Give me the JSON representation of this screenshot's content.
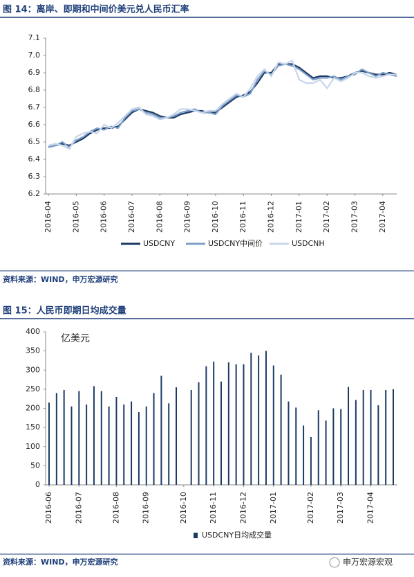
{
  "chart_data": [
    {
      "type": "line",
      "title": "图 14：离岸、即期和中间价美元兑人民币汇率",
      "categories": [
        "2016-04",
        null,
        null,
        null,
        "2016-05",
        null,
        null,
        null,
        "2016-06",
        null,
        null,
        null,
        "2016-07",
        null,
        null,
        null,
        "2016-08",
        null,
        null,
        null,
        "2016-09",
        null,
        null,
        null,
        "2016-10",
        null,
        null,
        null,
        "2016-11",
        null,
        null,
        null,
        "2016-12",
        null,
        null,
        null,
        "2017-01",
        null,
        null,
        null,
        "2017-02",
        null,
        null,
        null,
        "2017-03",
        null,
        null,
        null,
        "2017-04",
        null,
        null
      ],
      "series": [
        {
          "name": "USDCNY",
          "color": "#1c3a64",
          "values": [
            6.47,
            6.48,
            6.49,
            6.48,
            6.5,
            6.52,
            6.55,
            6.57,
            6.58,
            6.58,
            6.59,
            6.63,
            6.67,
            6.69,
            6.68,
            6.67,
            6.65,
            6.64,
            6.64,
            6.66,
            6.67,
            6.68,
            6.68,
            6.67,
            6.67,
            6.7,
            6.73,
            6.76,
            6.77,
            6.79,
            6.84,
            6.9,
            6.9,
            6.95,
            6.95,
            6.95,
            6.93,
            6.9,
            6.87,
            6.88,
            6.88,
            6.87,
            6.87,
            6.88,
            6.9,
            6.91,
            6.9,
            6.89,
            6.89,
            6.9,
            6.89
          ]
        },
        {
          "name": "USDCNY中间价",
          "color": "#7f9fc8",
          "values": [
            6.47,
            6.48,
            6.5,
            6.47,
            6.51,
            6.53,
            6.56,
            6.58,
            6.57,
            6.59,
            6.58,
            6.64,
            6.68,
            6.69,
            6.67,
            6.66,
            6.64,
            6.64,
            6.65,
            6.67,
            6.68,
            6.69,
            6.67,
            6.67,
            6.66,
            6.71,
            6.74,
            6.77,
            6.76,
            6.78,
            6.86,
            6.91,
            6.89,
            6.94,
            6.95,
            6.94,
            6.92,
            6.89,
            6.86,
            6.87,
            6.87,
            6.88,
            6.86,
            6.88,
            6.89,
            6.92,
            6.9,
            6.88,
            6.9,
            6.89,
            6.88
          ]
        },
        {
          "name": "USDCNH",
          "color": "#c6d6eb",
          "values": [
            6.48,
            6.49,
            6.48,
            6.46,
            6.53,
            6.55,
            6.56,
            6.55,
            6.6,
            6.58,
            6.61,
            6.65,
            6.69,
            6.7,
            6.66,
            6.65,
            6.63,
            6.64,
            6.66,
            6.69,
            6.69,
            6.68,
            6.67,
            6.68,
            6.68,
            6.72,
            6.75,
            6.78,
            6.76,
            6.81,
            6.88,
            6.92,
            6.88,
            6.96,
            6.95,
            6.97,
            6.86,
            6.84,
            6.84,
            6.86,
            6.81,
            6.87,
            6.85,
            6.87,
            6.9,
            6.9,
            6.88,
            6.87,
            6.88,
            6.89,
            6.89
          ]
        }
      ],
      "ylim": [
        6.2,
        7.1
      ],
      "yticks": [
        6.2,
        6.3,
        6.4,
        6.5,
        6.6,
        6.7,
        6.8,
        6.9,
        {
          "value": 7,
          "label": "7.0"
        },
        7.1
      ]
    },
    {
      "type": "bar",
      "title": "图 15：人民币即期日均成交量",
      "y_label": "亿美元",
      "categories": [
        "2016-06",
        null,
        null,
        null,
        "2016-07",
        null,
        null,
        null,
        null,
        "2016-08",
        null,
        null,
        null,
        "2016-09",
        null,
        null,
        null,
        null,
        "2016-10",
        null,
        null,
        null,
        "2016-11",
        null,
        null,
        null,
        "2016-12",
        null,
        null,
        null,
        "2017-01",
        null,
        null,
        null,
        null,
        "2017-02",
        null,
        null,
        null,
        "2017-03",
        null,
        null,
        null,
        "2017-04",
        null,
        null,
        null
      ],
      "series": [
        {
          "name": "USDCNY日均成交量",
          "color": "#1c3a64",
          "values": [
            215,
            240,
            248,
            205,
            245,
            210,
            258,
            245,
            205,
            230,
            210,
            218,
            190,
            205,
            240,
            285,
            213,
            255,
            null,
            248,
            268,
            310,
            322,
            270,
            320,
            315,
            315,
            345,
            338,
            350,
            312,
            288,
            218,
            202,
            155,
            125,
            195,
            168,
            200,
            198,
            256,
            222,
            248,
            248,
            208,
            248,
            250
          ]
        }
      ],
      "ylim": [
        0,
        400
      ],
      "yticks": [
        0,
        50,
        100,
        150,
        200,
        250,
        300,
        350,
        400
      ]
    }
  ],
  "sources": [
    "资料来源：WIND，申万宏源研究",
    "资料来源：WIND，申万宏源研究"
  ],
  "watermark": "申万宏源宏观"
}
